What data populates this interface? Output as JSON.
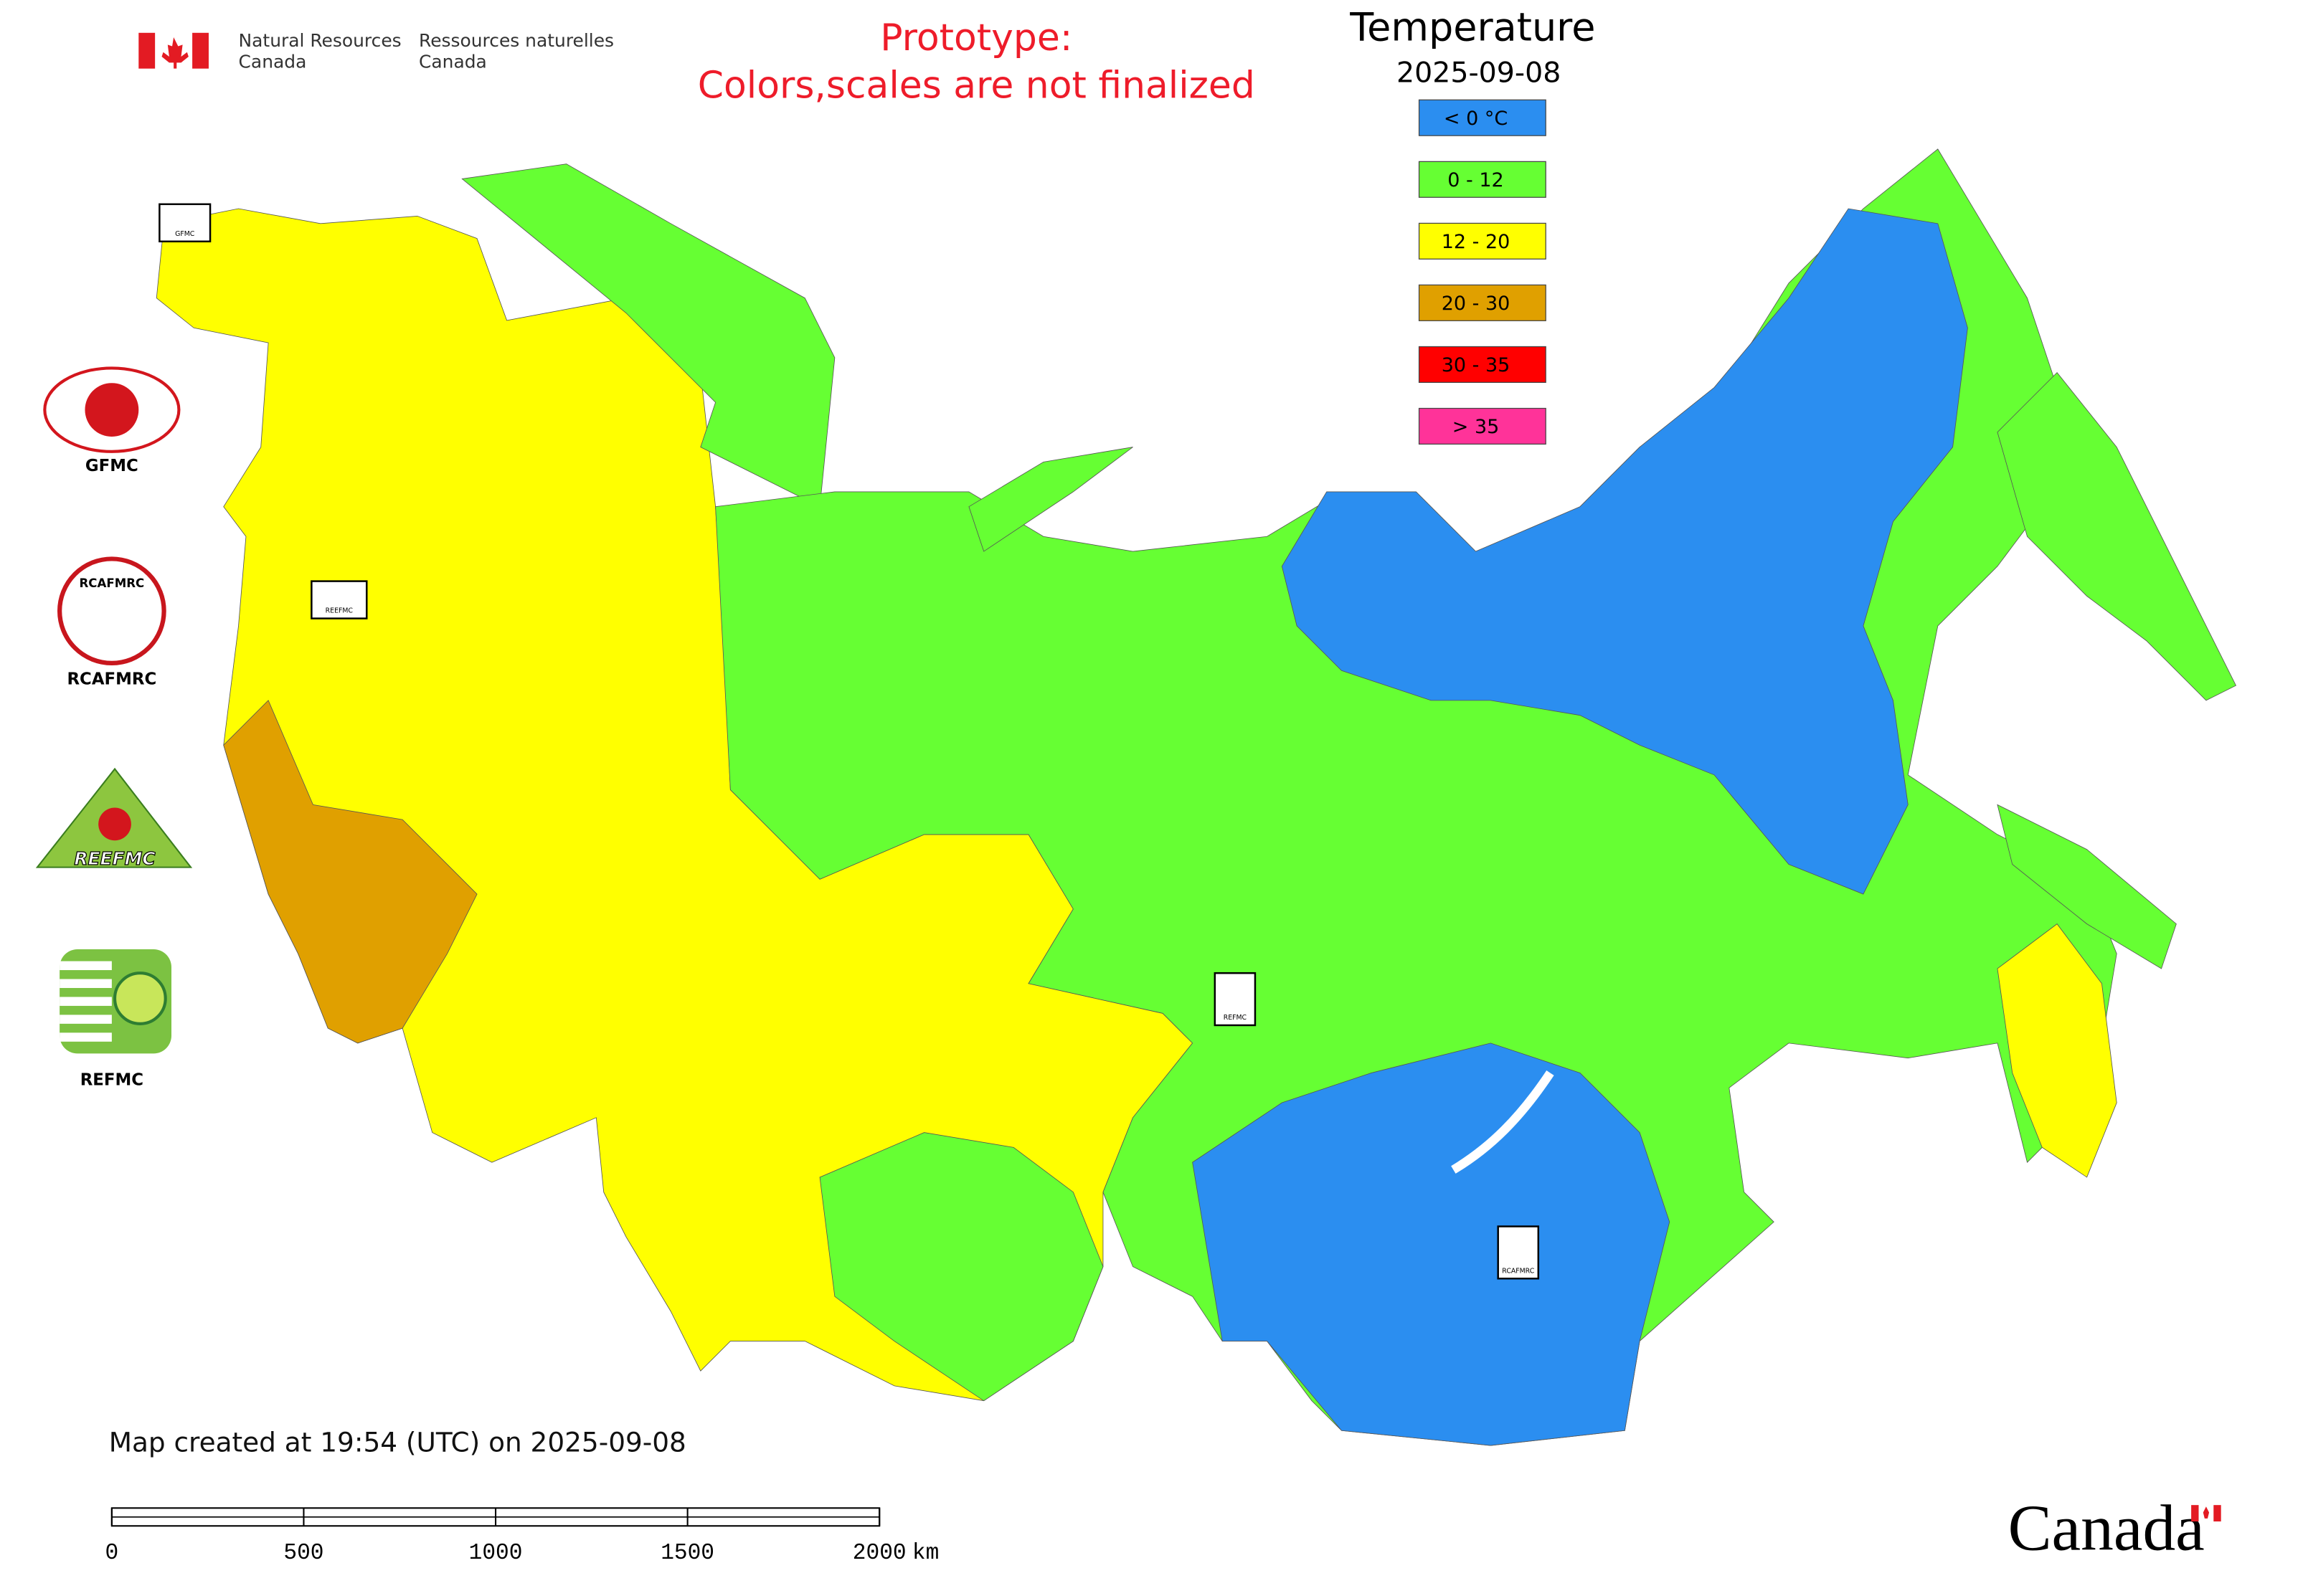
{
  "header": {
    "agency_en": [
      "Natural Resources",
      "Canada"
    ],
    "agency_fr": [
      "Ressources naturelles",
      "Canada"
    ],
    "prototype_note": [
      "Prototype:",
      "Colors,scales are not finalized"
    ]
  },
  "legend": {
    "title": "Temperature",
    "date": "2025-09-08",
    "items": [
      {
        "label": "< 0 °C",
        "color": "#2b8ef0"
      },
      {
        "label": "0 - 12",
        "color": "#66ff33"
      },
      {
        "label": "12 - 20",
        "color": "#ffff00"
      },
      {
        "label": "20 - 30",
        "color": "#e0a000"
      },
      {
        "label": "30 - 35",
        "color": "#ff0000"
      },
      {
        "label": "> 35",
        "color": "#ff3399"
      }
    ]
  },
  "centers": [
    "GFMC",
    "RCAFMRC",
    "REEFMC",
    "REFMC"
  ],
  "footer": {
    "created": "Map created at 19:54 (UTC) on 2025-09-08",
    "scale_ticks": [
      0,
      500,
      1000,
      1500,
      2000
    ],
    "scale_unit": "km",
    "wordmark": "Canada"
  }
}
